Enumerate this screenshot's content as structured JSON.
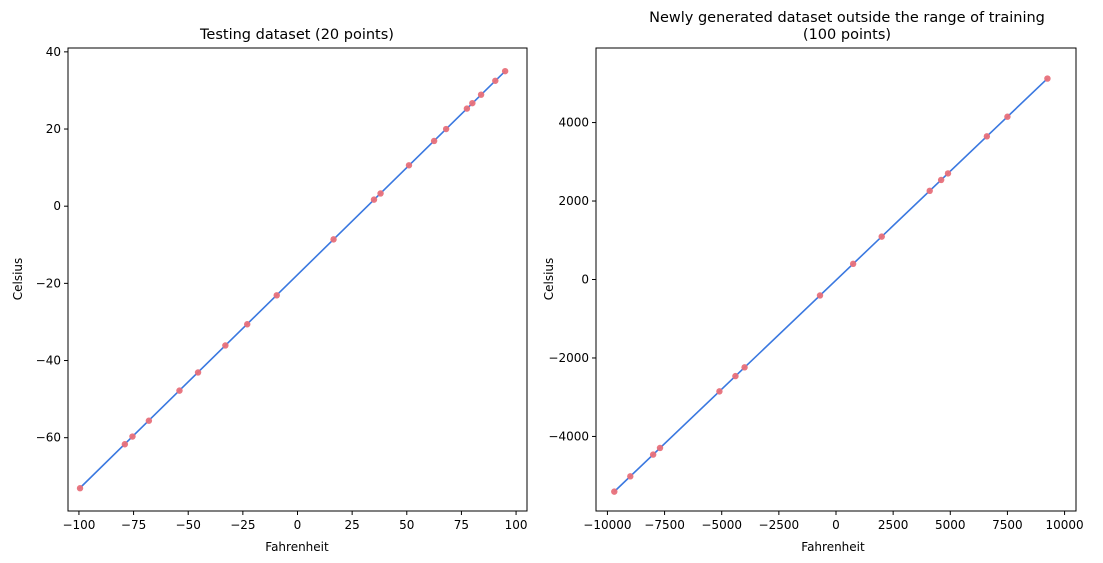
{
  "chart_data": [
    {
      "type": "scatter",
      "title": "Testing dataset (20 points)",
      "xlabel": "Fahrenheit",
      "ylabel": "Celsius",
      "xlim": [
        -105,
        105
      ],
      "ylim": [
        -79,
        41
      ],
      "xticks": [
        -100,
        -75,
        -50,
        -25,
        0,
        25,
        50,
        75,
        100
      ],
      "xtick_labels": [
        "−100",
        "−75",
        "−50",
        "−25",
        "0",
        "25",
        "50",
        "75",
        "100"
      ],
      "yticks": [
        -60,
        -40,
        -20,
        0,
        20,
        40
      ],
      "ytick_labels": [
        "−60",
        "−40",
        "−20",
        "0",
        "20",
        "40"
      ],
      "points": {
        "x": [
          -99.5,
          -79,
          -75.5,
          -68,
          -54,
          -45.5,
          -33,
          -23,
          -9.5,
          16.5,
          35,
          38,
          51,
          62.5,
          68,
          77.5,
          80,
          84,
          90.5,
          95
        ],
        "y": [
          -73.1,
          -61.7,
          -59.7,
          -55.6,
          -47.8,
          -43.1,
          -36.1,
          -30.6,
          -23.1,
          -8.6,
          1.7,
          3.3,
          10.6,
          16.9,
          20.0,
          25.3,
          26.7,
          28.9,
          32.5,
          35.0
        ]
      },
      "line": {
        "x": [
          -100,
          95
        ],
        "y": [
          -73.3,
          35.0
        ]
      },
      "point_color": "#e8707a",
      "line_color": "#3a78e0"
    },
    {
      "type": "scatter",
      "title": "Newly generated dataset outside the range of training",
      "subtitle": "(100 points)",
      "xlabel": "Fahrenheit",
      "ylabel": "Celsius",
      "xlim": [
        -10500,
        10500
      ],
      "ylim": [
        -5900,
        5900
      ],
      "xticks": [
        -10000,
        -7500,
        -5000,
        -2500,
        0,
        2500,
        5000,
        7500,
        10000
      ],
      "xtick_labels": [
        "−10000",
        "−7500",
        "−5000",
        "−2500",
        "0",
        "2500",
        "5000",
        "7500",
        "10000"
      ],
      "yticks": [
        -4000,
        -2000,
        0,
        2000,
        4000
      ],
      "ytick_labels": [
        "−4000",
        "−2000",
        "0",
        "2000",
        "4000"
      ],
      "points": {
        "x": [
          -9700,
          -9000,
          -8000,
          -7700,
          -5100,
          -4400,
          -4000,
          -700,
          750,
          2000,
          4100,
          4600,
          4900,
          6600,
          7500,
          9250
        ],
        "y": [
          -5406,
          -5017,
          -4462,
          -4294,
          -2851,
          -2462,
          -2239,
          -407,
          399,
          1093,
          2260,
          2537,
          2704,
          3648,
          4149,
          5121
        ]
      },
      "line": {
        "x": [
          -9700,
          9250
        ],
        "y": [
          -5406,
          5121
        ]
      },
      "point_color": "#e8707a",
      "line_color": "#3a78e0"
    }
  ]
}
